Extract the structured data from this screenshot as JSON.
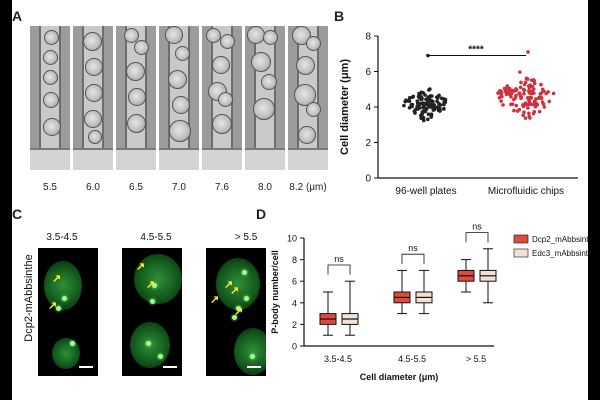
{
  "panel_labels": {
    "a": "A",
    "b": "B",
    "c": "C",
    "d": "D"
  },
  "panel_a": {
    "labels": [
      "5.5",
      "6.0",
      "6.5",
      "7.0",
      "7.6",
      "8.0",
      "8.2 (μm)"
    ]
  },
  "panel_c": {
    "side_label": "Dcp2-mAbbsinthe",
    "headers": [
      "3.5-4.5",
      "4.5-5.5",
      "> 5.5"
    ]
  },
  "chart_data": [
    {
      "type": "scatter",
      "panel": "B",
      "ylabel": "Cell diameter (μm)",
      "categories": [
        "96-well plates",
        "Microfluidic chips"
      ],
      "ylim": [
        0,
        8
      ],
      "yticks": [
        0,
        2,
        4,
        6,
        8
      ],
      "significance": "****",
      "series": [
        {
          "name": "96-well plates",
          "color": "#222222",
          "median": 4.2,
          "min": 3.2,
          "max": 6.9
        },
        {
          "name": "Microfluidic chips",
          "color": "#d0313c",
          "median": 4.6,
          "min": 3.3,
          "max": 7.1
        }
      ]
    },
    {
      "type": "box",
      "panel": "D",
      "ylabel": "P-body number/cell",
      "xlabel": "Cell diameter (μm)",
      "categories": [
        "3.5-4.5",
        "4.5-5.5",
        "> 5.5"
      ],
      "ylim": [
        0,
        10
      ],
      "yticks": [
        0,
        2,
        4,
        6,
        8,
        10
      ],
      "significance": [
        "ns",
        "ns",
        "ns"
      ],
      "legend_position": "right",
      "series": [
        {
          "name": "Dcp2_mAbbsinthe",
          "color": "#e04a3c",
          "boxes": [
            {
              "min": 1,
              "q1": 2,
              "median": 2.5,
              "q3": 3,
              "max": 5
            },
            {
              "min": 3,
              "q1": 4,
              "median": 4.5,
              "q3": 5,
              "max": 7
            },
            {
              "min": 5,
              "q1": 6,
              "median": 6.5,
              "q3": 7,
              "max": 8
            }
          ]
        },
        {
          "name": "Edc3_mAbbsinthe",
          "color": "#f6e0d6",
          "boxes": [
            {
              "min": 1,
              "q1": 2,
              "median": 2.5,
              "q3": 3,
              "max": 6
            },
            {
              "min": 3,
              "q1": 4,
              "median": 4.5,
              "q3": 5,
              "max": 7
            },
            {
              "min": 4,
              "q1": 6,
              "median": 6.5,
              "q3": 7,
              "max": 9
            }
          ]
        }
      ]
    }
  ]
}
